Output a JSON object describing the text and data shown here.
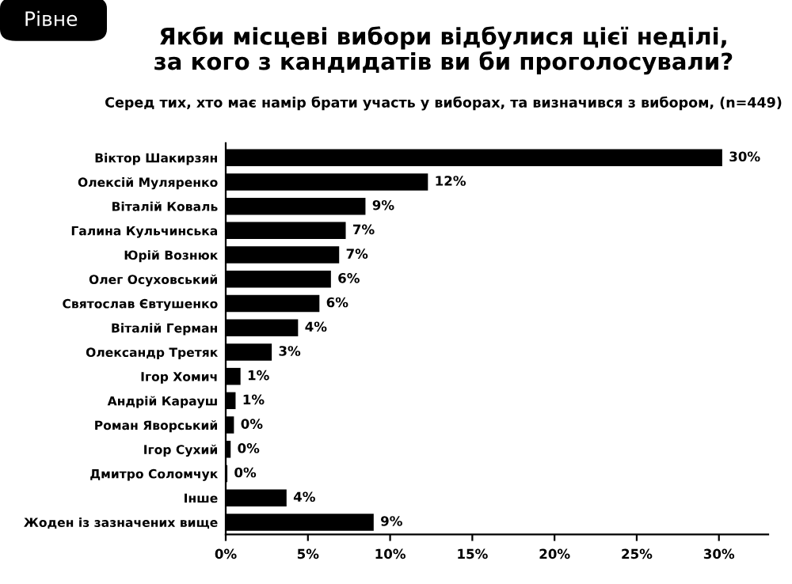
{
  "chart_data": {
    "type": "bar",
    "orientation": "horizontal",
    "title": "Якби місцеві вибори відбулися цієї неділі,\nза кого з кандидатів ви би проголосували?",
    "subtitle": "Серед тих, хто має намір брати участь у виборах, та визначився з вибором, (n=449)",
    "annotations": [
      "Рівне"
    ],
    "categories": [
      "Віктор Шакирзян",
      "Олексій Муляренко",
      "Віталій Коваль",
      "Галина Кульчинська",
      "Юрій Вознюк",
      "Олег Осуховський",
      "Святослав Євтушенко",
      "Віталій Герман",
      "Олександр Третяк",
      "Ігор Хомич",
      "Андрій Карауш",
      "Роман Яворський",
      "Ігор Сухий",
      "Дмитро Соломчук",
      "Інше",
      "Жоден із зазначених вище"
    ],
    "values": [
      30.2,
      12.3,
      8.5,
      7.3,
      6.9,
      6.4,
      5.7,
      4.4,
      2.8,
      0.9,
      0.6,
      0.5,
      0.3,
      0.1,
      3.7,
      9.0
    ],
    "value_labels": [
      "30%",
      "12%",
      "9%",
      "7%",
      "7%",
      "6%",
      "6%",
      "4%",
      "3%",
      "1%",
      "1%",
      "0%",
      "0%",
      "0%",
      "4%",
      "9%"
    ],
    "color": "#000000",
    "xlim": [
      0,
      33
    ],
    "xticks": [
      {
        "value": 0,
        "label": "0%"
      },
      {
        "value": 5,
        "label": "5%"
      },
      {
        "value": 10,
        "label": "10%"
      },
      {
        "value": 15,
        "label": "15%"
      },
      {
        "value": 20,
        "label": "20%"
      },
      {
        "value": 25,
        "label": "25%"
      },
      {
        "value": 30,
        "label": "30%"
      }
    ],
    "grid": false,
    "legend": false
  }
}
